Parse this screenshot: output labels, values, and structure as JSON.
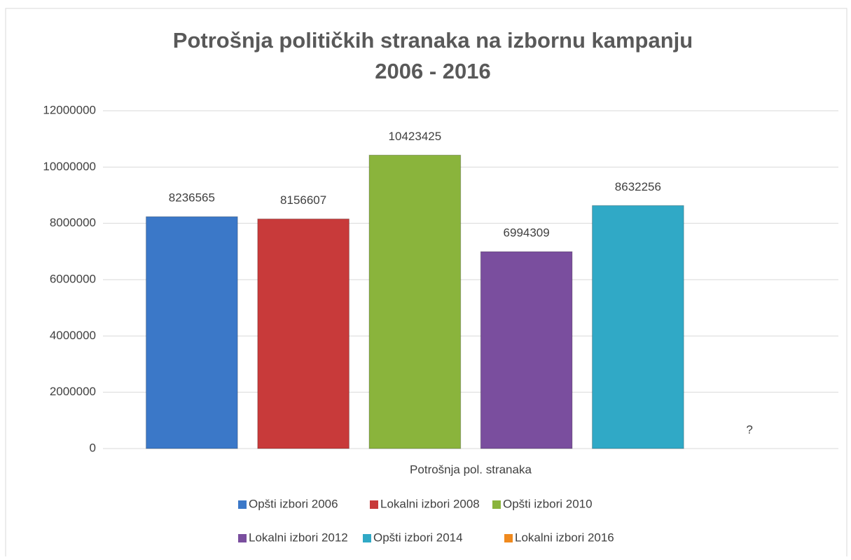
{
  "chart_data": {
    "type": "bar",
    "title": [
      "Potrošnja političkih stranaka na izbornu kampanju",
      "2006 - 2016"
    ],
    "categories": [
      "Potrošnja pol. stranaka"
    ],
    "series": [
      {
        "name": "Opšti izbori 2006",
        "color": "#3b78c8",
        "values": [
          8236565
        ]
      },
      {
        "name": "Lokalni izbori 2008",
        "color": "#c83a3a",
        "values": [
          8156607
        ]
      },
      {
        "name": "Opšti izbori 2010",
        "color": "#8ab43c",
        "values": [
          10423425
        ]
      },
      {
        "name": "Lokalni izbori 2012",
        "color": "#7a4e9e",
        "values": [
          6994309
        ]
      },
      {
        "name": "Opšti izbori 2014",
        "color": "#30a9c6",
        "values": [
          8632256
        ]
      },
      {
        "name": "Lokalni izbori 2016",
        "color": "#f08a1e",
        "values": [
          null
        ],
        "value_labels": [
          "?"
        ]
      }
    ],
    "ylim": [
      0,
      12000000
    ],
    "yticks": [
      0,
      2000000,
      4000000,
      6000000,
      8000000,
      10000000,
      12000000
    ],
    "grid": true,
    "legend": "bottom"
  }
}
